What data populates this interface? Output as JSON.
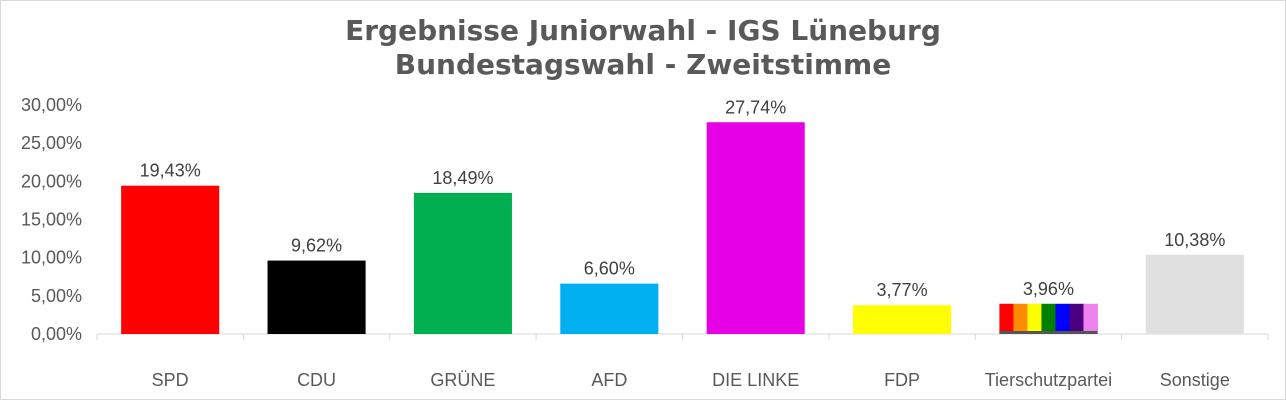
{
  "chart_data": {
    "type": "bar",
    "title": "Ergebnisse Juniorwahl - IGS Lüneburg",
    "subtitle": "Bundestagswahl - Zweitstimme",
    "categories": [
      "SPD",
      "CDU",
      "GRÜNE",
      "AFD",
      "DIE LINKE",
      "FDP",
      "Tierschutzpartei",
      "Sonstige"
    ],
    "values": [
      19.43,
      9.62,
      18.49,
      6.6,
      27.74,
      3.77,
      3.96,
      10.38
    ],
    "value_labels": [
      "19,43%",
      "9,62%",
      "18,49%",
      "6,60%",
      "27,74%",
      "3,77%",
      "3,96%",
      "10,38%"
    ],
    "colors": [
      "#ff0000",
      "#000000",
      "#00b050",
      "#00b0f0",
      "#e600e6",
      "#ffff00",
      "rainbow",
      "#e0e0e0"
    ],
    "rainbow_colors": [
      "#ff0000",
      "#ff8c00",
      "#ffff00",
      "#008000",
      "#0000ff",
      "#4b0082",
      "#ee82ee"
    ],
    "ylim": [
      0,
      30
    ],
    "yticks": [
      0,
      5,
      10,
      15,
      20,
      25,
      30
    ],
    "ytick_labels": [
      "0,00%",
      "5,00%",
      "10,00%",
      "15,00%",
      "20,00%",
      "25,00%",
      "30,00%"
    ],
    "xlabel": "",
    "ylabel": "",
    "grid": false,
    "legend": "none"
  }
}
